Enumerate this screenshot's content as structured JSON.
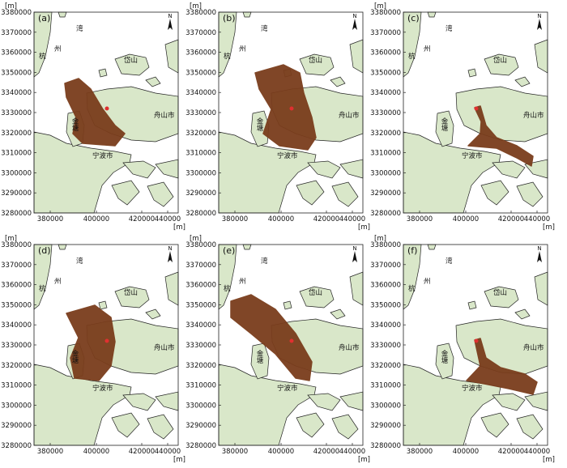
{
  "panels": [
    {
      "label": "(a)"
    },
    {
      "label": "(b)"
    },
    {
      "label": "(c)"
    },
    {
      "label": "(d)"
    },
    {
      "label": "(e)"
    },
    {
      "label": "(f)"
    }
  ],
  "axes": {
    "unit": "[m]",
    "yticks": [
      3380000,
      3370000,
      3360000,
      3350000,
      3340000,
      3330000,
      3320000,
      3310000,
      3300000,
      3290000,
      3280000
    ],
    "xticks": [
      380000,
      400000,
      420000,
      440000
    ]
  },
  "places": {
    "bay": "湾",
    "zhou": "州",
    "hang": "杭",
    "daishan": "岱山",
    "zhoushan": "舟山市",
    "jintang": "金塘",
    "ningbo": "宁波市"
  },
  "north": "N"
}
